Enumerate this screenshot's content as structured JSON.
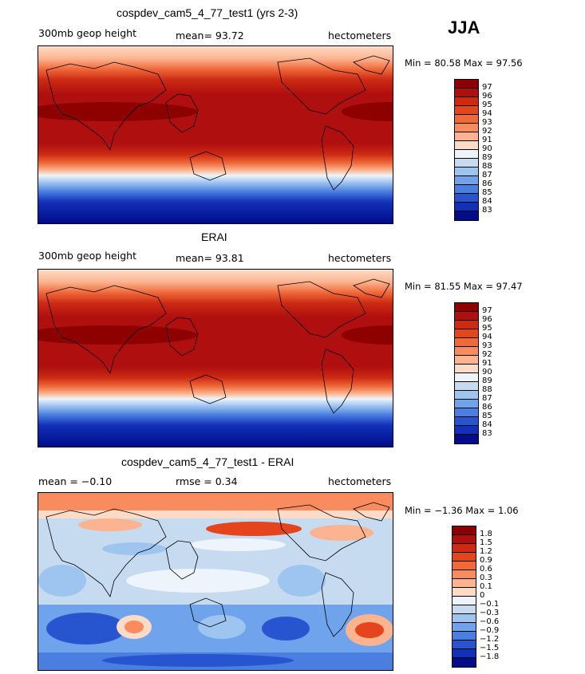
{
  "season": "JJA",
  "panels": [
    {
      "title": "cospdev_cam5_4_77_test1 (yrs 2-3)",
      "left_label": "300mb geop height",
      "center_label": "mean=  93.72",
      "right_label": "hectometers",
      "min_max": "Min =  80.58 Max =  97.56",
      "colorbar_labels": [
        "97",
        "96",
        "95",
        "94",
        "93",
        "92",
        "91",
        "90",
        "89",
        "88",
        "87",
        "86",
        "85",
        "84",
        "83"
      ],
      "colorbar_colors": [
        "#8b0000",
        "#b00f0f",
        "#cc2a12",
        "#e5451d",
        "#f0693a",
        "#f88c5e",
        "#fbb48f",
        "#fddbc7",
        "#eef4fb",
        "#c6dbef",
        "#9ec4f0",
        "#6fa3ec",
        "#4a7fe0",
        "#2755d0",
        "#1230b8",
        "#000c8a"
      ]
    },
    {
      "title": "ERAI",
      "left_label": "300mb geop height",
      "center_label": "mean=  93.81",
      "right_label": "hectometers",
      "min_max": "Min =  81.55 Max =  97.47",
      "colorbar_labels": [
        "97",
        "96",
        "95",
        "94",
        "93",
        "92",
        "91",
        "90",
        "89",
        "88",
        "87",
        "86",
        "85",
        "84",
        "83"
      ],
      "colorbar_colors": [
        "#8b0000",
        "#b00f0f",
        "#cc2a12",
        "#e5451d",
        "#f0693a",
        "#f88c5e",
        "#fbb48f",
        "#fddbc7",
        "#eef4fb",
        "#c6dbef",
        "#9ec4f0",
        "#6fa3ec",
        "#4a7fe0",
        "#2755d0",
        "#1230b8",
        "#000c8a"
      ]
    },
    {
      "title": "cospdev_cam5_4_77_test1 - ERAI",
      "left_label": "mean =  −0.10",
      "center_label": "rmse =   0.34",
      "right_label": "hectometers",
      "min_max": "Min =  −1.36 Max =   1.06",
      "colorbar_labels": [
        "1.8",
        "1.5",
        "1.2",
        "0.9",
        "0.6",
        "0.3",
        "0.1",
        "0",
        "−0.1",
        "−0.3",
        "−0.6",
        "−0.9",
        "−1.2",
        "−1.5",
        "−1.8"
      ],
      "colorbar_colors": [
        "#8b0000",
        "#b00f0f",
        "#cc2a12",
        "#e5451d",
        "#f0693a",
        "#f88c5e",
        "#fbb48f",
        "#fddbc7",
        "#eef4fb",
        "#c6dbef",
        "#9ec4f0",
        "#6fa3ec",
        "#4a7fe0",
        "#2755d0",
        "#1230b8",
        "#000c8a"
      ]
    }
  ]
}
